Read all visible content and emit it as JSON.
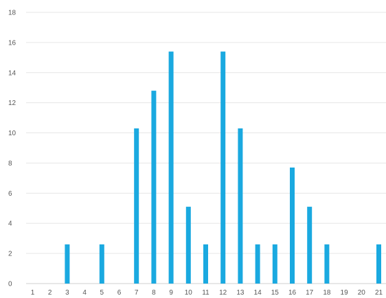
{
  "chart_data": {
    "type": "bar",
    "title": "",
    "xlabel": "",
    "ylabel": "",
    "categories": [
      "1",
      "2",
      "3",
      "4",
      "5",
      "6",
      "7",
      "8",
      "9",
      "10",
      "11",
      "12",
      "13",
      "14",
      "15",
      "16",
      "17",
      "18",
      "19",
      "20",
      "21"
    ],
    "values": [
      0,
      0,
      2.6,
      0,
      2.6,
      0,
      10.3,
      12.8,
      15.4,
      5.1,
      2.6,
      15.4,
      10.3,
      2.6,
      2.6,
      7.7,
      5.1,
      2.6,
      0,
      0,
      2.6
    ],
    "ylim": [
      0,
      18
    ],
    "yticks": [
      0,
      2,
      4,
      6,
      8,
      10,
      12,
      14,
      16,
      18
    ],
    "grid": true,
    "legend": "none",
    "colors": {
      "bar": "#1aa9e0",
      "grid": "#e6e6e6",
      "text": "#555555"
    }
  }
}
